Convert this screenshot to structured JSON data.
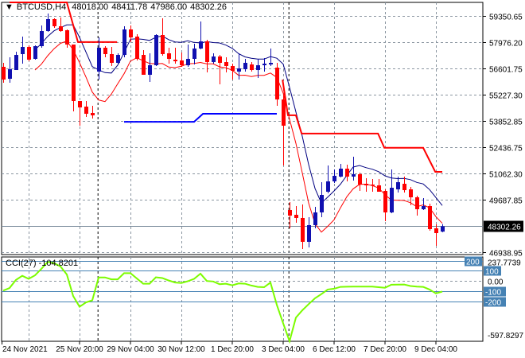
{
  "header": {
    "symbol": "BTCUSD,H4",
    "open": "48018.00",
    "high": "48411.78",
    "low": "47986.00",
    "close": "48302.26",
    "dropdown_icon": "triangle-down-icon"
  },
  "colors": {
    "bull": "#1010B0",
    "bear": "#FF0000",
    "ma_upper": "#000080",
    "ma_lower": "#FF0000",
    "step_resistance": "#FF0000",
    "step_support": "#0000FF",
    "cci": "#7CFC00",
    "cci_levels": "#4682B4",
    "grid": "#8A95A0"
  },
  "chart_data": [
    {
      "type": "candlestick",
      "title": "BTCUSD,H4",
      "ylim": [
        46813,
        60061
      ],
      "y_ticks": [
        "59350.65",
        "57976.20",
        "56601.75",
        "55227.30",
        "53852.85",
        "52436.75",
        "51062.30",
        "49687.85",
        "46938.95"
      ],
      "current_price": "48302.26",
      "x_tick_labels": [
        "24 Nov 2021",
        "25 Nov 20:00",
        "29 Nov 04:00",
        "30 Nov 12:00",
        "1 Dec 20:00",
        "3 Dec 04:00",
        "6 Dec 12:00",
        "7 Dec 20:00",
        "9 Dec 04:00"
      ],
      "grid": true,
      "ohlc": [
        [
          56676,
          56885,
          55840,
          56007
        ],
        [
          56049,
          57177,
          55840,
          56550
        ],
        [
          56508,
          57470,
          56508,
          57302
        ],
        [
          57344,
          58264,
          56843,
          57720
        ],
        [
          57720,
          57804,
          56968,
          57052
        ],
        [
          57094,
          57804,
          57052,
          57762
        ],
        [
          57762,
          58849,
          57679,
          58556
        ],
        [
          58556,
          59476,
          58514,
          59183
        ],
        [
          59183,
          59225,
          58723,
          58807
        ],
        [
          58807,
          59267,
          58514,
          58556
        ],
        [
          58598,
          58640,
          57679,
          57846
        ],
        [
          57846,
          57846,
          54335,
          54879
        ],
        [
          54879,
          54879,
          53583,
          54544
        ],
        [
          54586,
          54879,
          54043,
          54210
        ],
        [
          54252,
          54628,
          53959,
          54126
        ],
        [
          56425,
          58222,
          56007,
          57679
        ],
        [
          57679,
          57762,
          57177,
          57344
        ],
        [
          57344,
          57720,
          56717,
          56885
        ],
        [
          56885,
          57386,
          56843,
          57302
        ],
        [
          57302,
          58807,
          57177,
          58640
        ],
        [
          58640,
          58849,
          57971,
          58222
        ],
        [
          58264,
          58389,
          57010,
          57094
        ],
        [
          57302,
          57553,
          56258,
          56258
        ],
        [
          56258,
          57386,
          55882,
          56759
        ],
        [
          56759,
          58389,
          56717,
          58347
        ],
        [
          58347,
          59225,
          57261,
          57344
        ],
        [
          57386,
          57679,
          56843,
          57094
        ],
        [
          57052,
          57679,
          56843,
          56968
        ],
        [
          57010,
          57428,
          56676,
          56759
        ],
        [
          56759,
          57846,
          56676,
          57094
        ],
        [
          57094,
          57888,
          56801,
          57637
        ],
        [
          57637,
          59058,
          57595,
          58013
        ],
        [
          58013,
          58096,
          56383,
          56926
        ],
        [
          56926,
          57386,
          56843,
          57219
        ],
        [
          57219,
          57302,
          55756,
          56885
        ],
        [
          56926,
          57177,
          56383,
          56717
        ],
        [
          56717,
          56843,
          56007,
          56467
        ],
        [
          56425,
          57386,
          56007,
          56592
        ],
        [
          56550,
          57094,
          56425,
          56885
        ],
        [
          56801,
          56926,
          56425,
          56508
        ],
        [
          56508,
          57094,
          56091,
          56759
        ],
        [
          56759,
          57135,
          56425,
          56843
        ],
        [
          56801,
          57637,
          56717,
          56885
        ],
        [
          56634,
          56885,
          54628,
          54962
        ],
        [
          54962,
          55255,
          51494,
          53583
        ],
        [
          49153,
          49571,
          48192,
          48861
        ],
        [
          48903,
          49362,
          48485,
          48736
        ],
        [
          48736,
          49446,
          47106,
          47482
        ],
        [
          47482,
          48777,
          47189,
          48359
        ],
        [
          48359,
          49321,
          48192,
          49028
        ],
        [
          49028,
          50616,
          48777,
          49947
        ],
        [
          50115,
          51494,
          50031,
          50658
        ],
        [
          50658,
          51285,
          50574,
          50950
        ],
        [
          50909,
          51577,
          50867,
          51327
        ],
        [
          51327,
          51535,
          50658,
          50909
        ],
        [
          50909,
          51953,
          50700,
          51034
        ],
        [
          51034,
          51118,
          50156,
          50491
        ],
        [
          50533,
          50825,
          50115,
          50449
        ],
        [
          50491,
          50783,
          50115,
          50449
        ],
        [
          50449,
          50783,
          50115,
          50115
        ],
        [
          50156,
          50240,
          48568,
          49028
        ],
        [
          49028,
          51285,
          48986,
          50324
        ],
        [
          50240,
          50909,
          50073,
          50616
        ],
        [
          50533,
          50909,
          50073,
          50198
        ],
        [
          50240,
          50365,
          49404,
          49822
        ],
        [
          49822,
          49906,
          48861,
          49195
        ],
        [
          49195,
          49780,
          49153,
          49362
        ],
        [
          49362,
          49488,
          48067,
          48151
        ],
        [
          48192,
          48401,
          47273,
          47941
        ],
        [
          48018.0,
          48411.78,
          47986.0,
          48302.26
        ]
      ],
      "step_lines": {
        "resistance": [
          [
            [
              1,
              60060
            ],
            [
              10,
              60060
            ],
            [
              11.75,
              57976
            ],
            [
              17.9,
              57976
            ]
          ],
          [
            [
              43.9,
              56000
            ],
            [
              44.75,
              54130
            ],
            [
              46,
              54130
            ],
            [
              46.9,
              53170
            ],
            [
              58.9,
              53170
            ],
            [
              59.9,
              52420
            ],
            [
              66,
              52420
            ],
            [
              67.9,
              51160
            ],
            [
              69,
              51160
            ]
          ]
        ],
        "support": [
          [
            [
              19,
              53790
            ],
            [
              30,
              53790
            ],
            [
              31.4,
              54210
            ],
            [
              43,
              54210
            ]
          ]
        ]
      }
    },
    {
      "type": "line",
      "title": "CCI(27)",
      "current_value": "-104.8201",
      "ylim": [
        -597.8297,
        237.7739
      ],
      "max_label": "237.7739",
      "min_label": "-597.8297",
      "levels": [
        {
          "value": 200,
          "label": "200"
        },
        {
          "value": 100,
          "label": "100"
        },
        {
          "value": 0,
          "label": "0.00"
        },
        {
          "value": -100,
          "label": "-100"
        },
        {
          "value": -200,
          "label": "-200"
        }
      ],
      "values": [
        -96,
        -70,
        10,
        51,
        21,
        56,
        120,
        189,
        176,
        144,
        64,
        -149,
        -256,
        -213,
        -192,
        35,
        35,
        16,
        16,
        77,
        77,
        25,
        -27,
        -27,
        37,
        29,
        5,
        -15,
        -21,
        -3,
        21,
        72,
        0,
        -5,
        -32,
        -27,
        -43,
        -25,
        -27,
        -45,
        -59,
        -62,
        -16,
        -237,
        -420,
        -597,
        -363,
        -291,
        -230,
        -171,
        -130,
        -85,
        -77,
        -59,
        -57,
        -56,
        -56,
        -56,
        -56,
        -62,
        -67,
        -37,
        -36,
        -35,
        -50,
        -56,
        -59,
        -85,
        -123,
        -105
      ]
    }
  ]
}
